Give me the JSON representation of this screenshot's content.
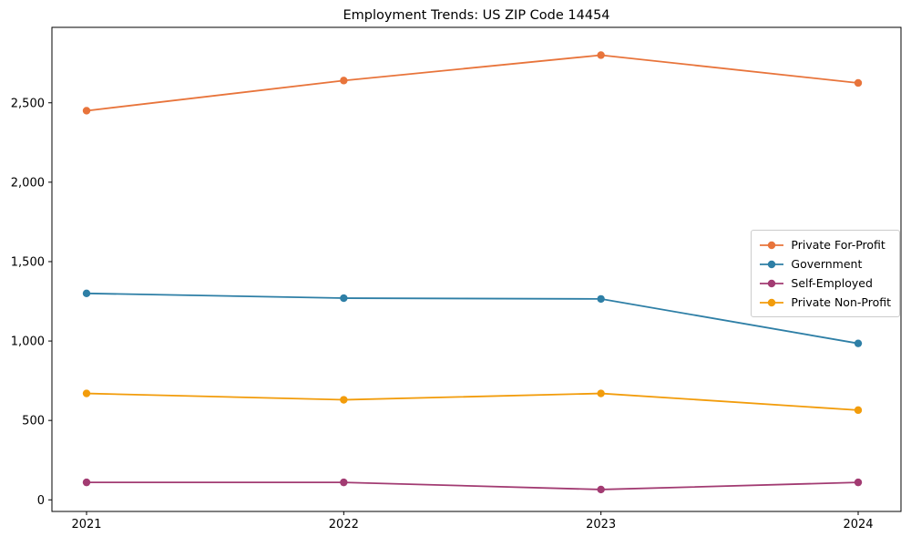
{
  "title": "Employment Trends: US ZIP Code 14454",
  "chart_data": {
    "type": "line",
    "title": "Employment Trends: US ZIP Code 14454",
    "categories": [
      "2021",
      "2022",
      "2023",
      "2024"
    ],
    "series": [
      {
        "name": "Private For-Profit",
        "color": "#e8743b",
        "values": [
          2450,
          2640,
          2800,
          2625
        ]
      },
      {
        "name": "Government",
        "color": "#2e7fa6",
        "values": [
          1300,
          1270,
          1265,
          985
        ]
      },
      {
        "name": "Self-Employed",
        "color": "#a23b72",
        "values": [
          110,
          110,
          65,
          110
        ]
      },
      {
        "name": "Private Non-Profit",
        "color": "#f29c0b",
        "values": [
          670,
          630,
          670,
          565
        ]
      }
    ],
    "xlabel": "",
    "ylabel": "",
    "ylim": [
      -73,
      2975
    ],
    "yticks": [
      0,
      500,
      1000,
      1500,
      2000,
      2500
    ],
    "ytick_labels": [
      "0",
      "500",
      "1,000",
      "1,500",
      "2,000",
      "2,500"
    ],
    "grid": false,
    "legend_position": "center-right",
    "marker": "o",
    "spine_color": "#000000"
  }
}
